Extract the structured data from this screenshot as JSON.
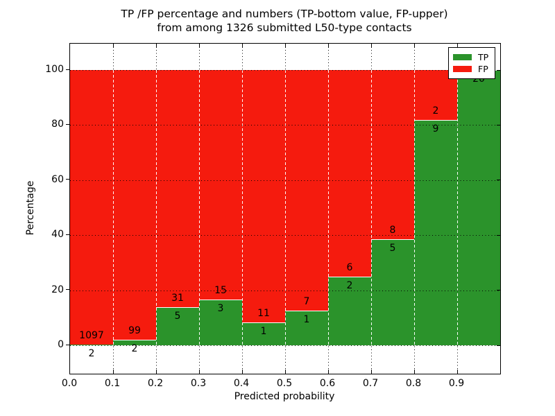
{
  "title": {
    "line1": "TP /FP percentage and numbers (TP-bottom value, FP-upper)",
    "line2": "from among 1326 submitted L50-type contacts"
  },
  "axes": {
    "xlabel": "Predicted probability",
    "ylabel": "Percentage",
    "x_ticks": [
      "0.0",
      "0.1",
      "0.2",
      "0.3",
      "0.4",
      "0.5",
      "0.6",
      "0.7",
      "0.8",
      "0.9"
    ],
    "y_ticks": [
      "0",
      "20",
      "40",
      "60",
      "80",
      "100"
    ]
  },
  "legend": {
    "items": [
      {
        "label": "TP",
        "color": "#2b932b"
      },
      {
        "label": "FP",
        "color": "#f51b0e"
      }
    ]
  },
  "colors": {
    "tp": "#2b932b",
    "fp": "#f51b0e",
    "axis": "#000000",
    "background": "#ffffff"
  },
  "chart_data": {
    "type": "bar",
    "stacked": true,
    "normalized_to_percent": true,
    "title": "TP /FP percentage and numbers (TP-bottom value, FP-upper) from among 1326 submitted L50-type contacts",
    "xlabel": "Predicted probability",
    "ylabel": "Percentage",
    "categories": [
      "0.0-0.1",
      "0.1-0.2",
      "0.2-0.3",
      "0.3-0.4",
      "0.4-0.5",
      "0.5-0.6",
      "0.6-0.7",
      "0.7-0.8",
      "0.8-0.9",
      "0.9-1.0"
    ],
    "series": [
      {
        "name": "TP",
        "color": "#2b932b",
        "counts": [
          2,
          2,
          5,
          3,
          1,
          1,
          2,
          5,
          9,
          20
        ],
        "percent": [
          0.18,
          1.98,
          13.89,
          16.67,
          8.33,
          12.5,
          25.0,
          38.46,
          81.82,
          100.0
        ]
      },
      {
        "name": "FP",
        "color": "#f51b0e",
        "counts": [
          1097,
          99,
          31,
          15,
          11,
          7,
          6,
          8,
          2,
          0
        ],
        "percent": [
          99.82,
          98.02,
          86.11,
          83.33,
          91.67,
          87.5,
          75.0,
          61.54,
          18.18,
          0.0
        ]
      }
    ],
    "bar_labels": {
      "fp_shown": [
        "1097",
        "99",
        "31",
        "15",
        "11",
        "7",
        "6",
        "8",
        "2",
        ""
      ],
      "tp_shown": [
        "2",
        "2",
        "5",
        "3",
        "1",
        "1",
        "2",
        "5",
        "9",
        "20"
      ]
    },
    "total_contacts": 1326,
    "xlim": [
      0.0,
      1.0
    ],
    "x_tick_step": 0.1,
    "ylim_percent": [
      0,
      100
    ],
    "y_tick_step": 20,
    "grid": true,
    "grid_linestyle": "dotted",
    "legend_position": "upper right"
  }
}
